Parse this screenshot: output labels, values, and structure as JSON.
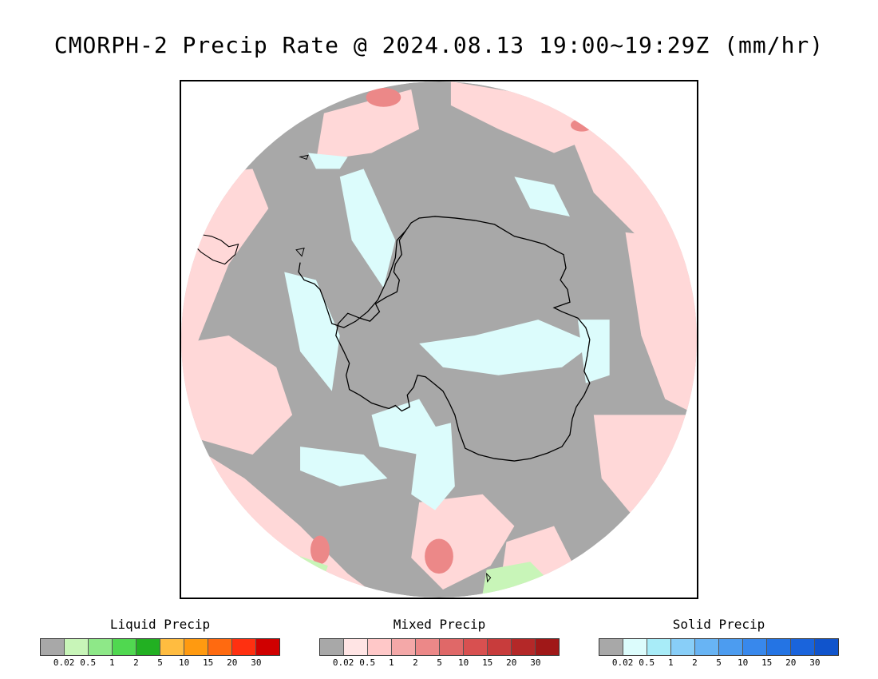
{
  "title": "CMORPH-2 Precip Rate @ 2024.08.13 19:00~19:29Z (mm/hr)",
  "colors": {
    "no_data": "#ffffff",
    "no_precip": "#a8a8a8",
    "coast": "#000000"
  },
  "legends": [
    {
      "title": "Liquid Precip",
      "colors": [
        "#a8a8a8",
        "#c8f5b8",
        "#8ee888",
        "#50d850",
        "#22b022",
        "#ffbc40",
        "#ff9a10",
        "#ff6a10",
        "#ff3010",
        "#d00000"
      ],
      "ticks": [
        "0.02",
        "0.5",
        "1",
        "2",
        "5",
        "10",
        "15",
        "20",
        "30"
      ]
    },
    {
      "title": "Mixed Precip",
      "colors": [
        "#a8a8a8",
        "#ffe4e4",
        "#ffc8c8",
        "#f4a8a8",
        "#ec8888",
        "#e06868",
        "#d85050",
        "#c83c3c",
        "#b42828",
        "#a01818"
      ],
      "ticks": [
        "0.02",
        "0.5",
        "1",
        "2",
        "5",
        "10",
        "15",
        "20",
        "30"
      ]
    },
    {
      "title": "Solid Precip",
      "colors": [
        "#a8a8a8",
        "#dcfcfc",
        "#a8ecf8",
        "#88cef8",
        "#68b4f4",
        "#4c9cf0",
        "#3888ec",
        "#2474e4",
        "#1a64dc",
        "#1054cc"
      ],
      "ticks": [
        "0.02",
        "0.5",
        "1",
        "2",
        "5",
        "10",
        "15",
        "20",
        "30"
      ]
    }
  ]
}
